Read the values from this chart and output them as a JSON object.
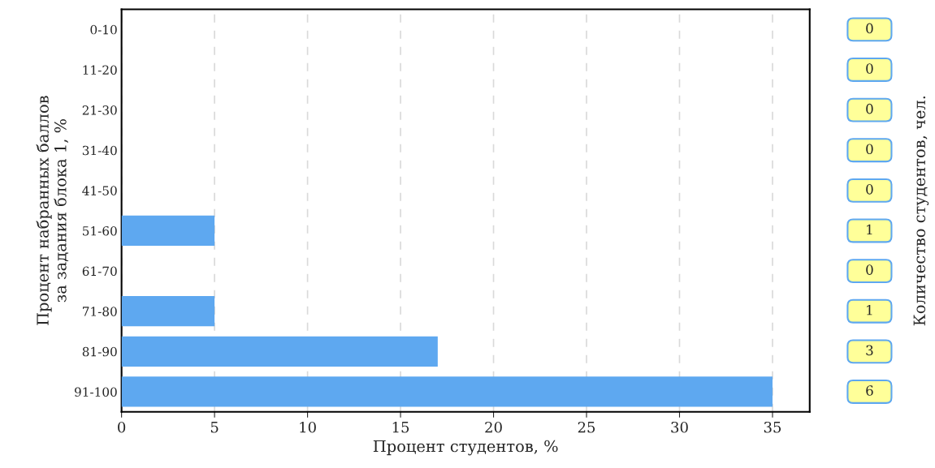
{
  "chart_data": {
    "type": "bar",
    "orientation": "horizontal",
    "xlabel": "Процент студентов, %",
    "ylabel": "Процент набранных баллов\nза задания блока 1, %",
    "categories": [
      "0-10",
      "11-20",
      "21-30",
      "31-40",
      "41-50",
      "51-60",
      "61-70",
      "71-80",
      "81-90",
      "91-100"
    ],
    "values": [
      0,
      0,
      0,
      0,
      0,
      5,
      0,
      5,
      17,
      35
    ],
    "color": "#5ea8f0",
    "xlim": [
      0,
      37
    ],
    "xticks": [
      0,
      5,
      10,
      15,
      20,
      25,
      30,
      35
    ],
    "grid": "x",
    "legend": false,
    "annotations": [
      "0",
      "0",
      "0",
      "0",
      "0",
      "1",
      "0",
      "1",
      "3",
      "6",
      "Количество студентов, чел."
    ]
  }
}
